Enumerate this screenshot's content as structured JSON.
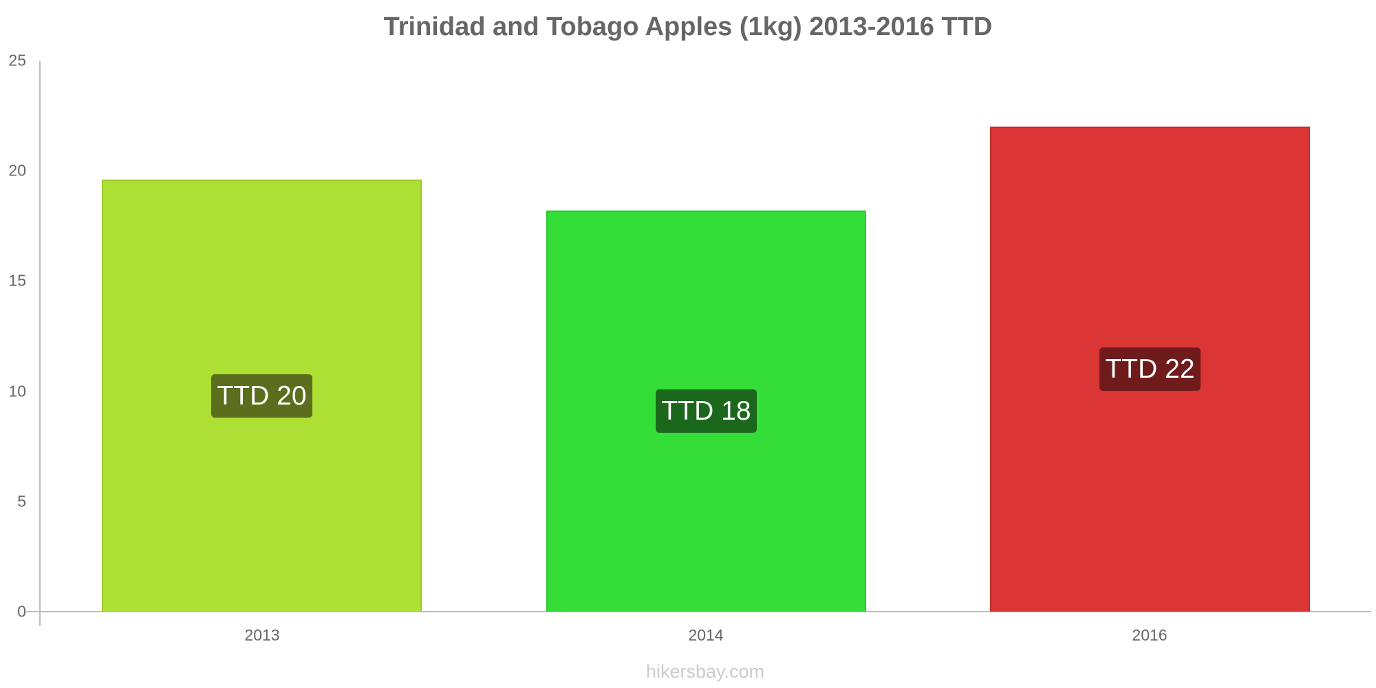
{
  "chart_data": {
    "type": "bar",
    "title": "Trinidad and Tobago Apples (1kg) 2013-2016 TTD",
    "xlabel": "",
    "ylabel": "",
    "ylim": [
      0,
      25
    ],
    "yticks": [
      0,
      5,
      10,
      15,
      20,
      25
    ],
    "grid": false,
    "legend": null,
    "categories": [
      "2013",
      "2014",
      "2016"
    ],
    "values": [
      19.6,
      18.2,
      22.0
    ],
    "data_labels": [
      "TTD 20",
      "TTD 18",
      "TTD 22"
    ],
    "colors": [
      "#addf34",
      "#34dd38",
      "#dc3535"
    ],
    "label_colors": [
      "#5a6e1d",
      "#1b681d",
      "#6f1b1b"
    ]
  },
  "title": "Trinidad and Tobago Apples (1kg) 2013-2016 TTD",
  "y_axis": {
    "ticks": [
      "0",
      "5",
      "10",
      "15",
      "20",
      "25"
    ]
  },
  "bars": [
    {
      "year": "2013",
      "label": "TTD 20",
      "value": 19.6,
      "color": "#addf34",
      "border": "#9dcc2c",
      "label_bg": "#5a6e1d"
    },
    {
      "year": "2014",
      "label": "TTD 18",
      "value": 18.2,
      "color": "#34dd38",
      "border": "#2dc830",
      "label_bg": "#1b681d"
    },
    {
      "year": "2016",
      "label": "TTD 22",
      "value": 22.0,
      "color": "#dc3535",
      "border": "#c62e2e",
      "label_bg": "#6f1b1b"
    }
  ],
  "watermark": "hikersbay.com"
}
